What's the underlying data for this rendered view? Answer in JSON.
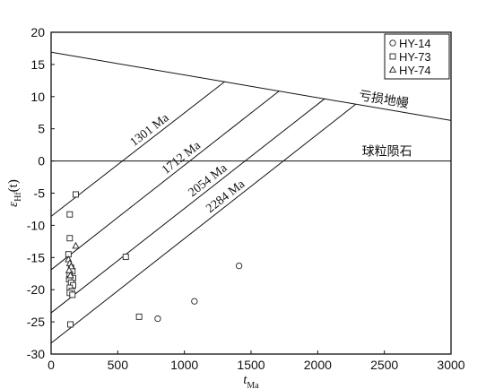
{
  "chart_data": {
    "type": "scatter",
    "title": "",
    "xlabel": {
      "main": "t",
      "sub": "Ma"
    },
    "ylabel": {
      "main": "ε",
      "sub": "Hf",
      "suffix": "(t)"
    },
    "xlim": [
      0,
      3000
    ],
    "ylim": [
      -30,
      20
    ],
    "xticks": [
      0,
      500,
      1000,
      1500,
      2000,
      2500,
      3000
    ],
    "yticks": [
      -30,
      -25,
      -20,
      -15,
      -10,
      -5,
      0,
      5,
      10,
      15,
      20
    ],
    "grid": false,
    "legend_position": "top-right",
    "series": [
      {
        "name": "HY-14",
        "marker": "circle",
        "points": [
          [
            800,
            -24.5
          ],
          [
            1075,
            -21.8
          ],
          [
            1410,
            -16.3
          ]
        ]
      },
      {
        "name": "HY-73",
        "marker": "square",
        "points": [
          [
            185,
            -5.2
          ],
          [
            140,
            -8.3
          ],
          [
            140,
            -12.0
          ],
          [
            130,
            -14.5
          ],
          [
            150,
            -16.6
          ],
          [
            160,
            -17.1
          ],
          [
            140,
            -17.6
          ],
          [
            165,
            -18.2
          ],
          [
            135,
            -18.4
          ],
          [
            150,
            -18.9
          ],
          [
            165,
            -19.3
          ],
          [
            140,
            -19.7
          ],
          [
            155,
            -20.2
          ],
          [
            140,
            -20.5
          ],
          [
            160,
            -20.8
          ],
          [
            145,
            -25.4
          ],
          [
            560,
            -14.9
          ],
          [
            660,
            -24.2
          ]
        ]
      },
      {
        "name": "HY-74",
        "marker": "triangle",
        "points": [
          [
            185,
            -13.2
          ],
          [
            130,
            -15.3
          ],
          [
            140,
            -15.9
          ],
          [
            150,
            -16.4
          ],
          [
            135,
            -17.0
          ],
          [
            145,
            -17.8
          ]
        ]
      }
    ],
    "reference_lines": [
      {
        "label": "亏损地幔",
        "kind": "depleted-mantle",
        "from": [
          0,
          16.9
        ],
        "to": [
          3000,
          6.3
        ]
      },
      {
        "label": "球粒陨石",
        "kind": "chondrite",
        "from": [
          0,
          0
        ],
        "to": [
          3000,
          0
        ]
      },
      {
        "label": "1301 Ma",
        "kind": "crustal-evolution",
        "from": [
          0,
          -8.6
        ],
        "to": [
          1301,
          12.3
        ]
      },
      {
        "label": "1712 Ma",
        "kind": "crustal-evolution",
        "from": [
          0,
          -16.9
        ],
        "to": [
          1712,
          10.9
        ]
      },
      {
        "label": "2054 Ma",
        "kind": "crustal-evolution",
        "from": [
          0,
          -23.6
        ],
        "to": [
          2054,
          9.7
        ]
      },
      {
        "label": "2284 Ma",
        "kind": "crustal-evolution",
        "from": [
          0,
          -28.3
        ],
        "to": [
          2284,
          8.8
        ]
      }
    ]
  }
}
